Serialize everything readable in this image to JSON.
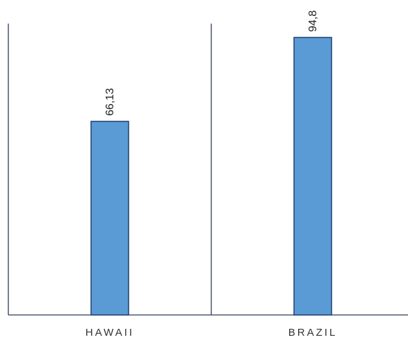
{
  "chart_data": {
    "type": "bar",
    "categories": [
      "HAWAII",
      "BRAZIL"
    ],
    "values": [
      66.13,
      94.8
    ],
    "data_labels": [
      "66,13",
      "94,8"
    ],
    "title": "",
    "xlabel": "",
    "ylabel": "",
    "ylim": [
      0,
      94.8
    ],
    "grid": false,
    "legend": "none",
    "bar_color": "#5b9bd5",
    "bar_border_color": "#1f3f6e",
    "axis_color": "#2f3b52"
  }
}
